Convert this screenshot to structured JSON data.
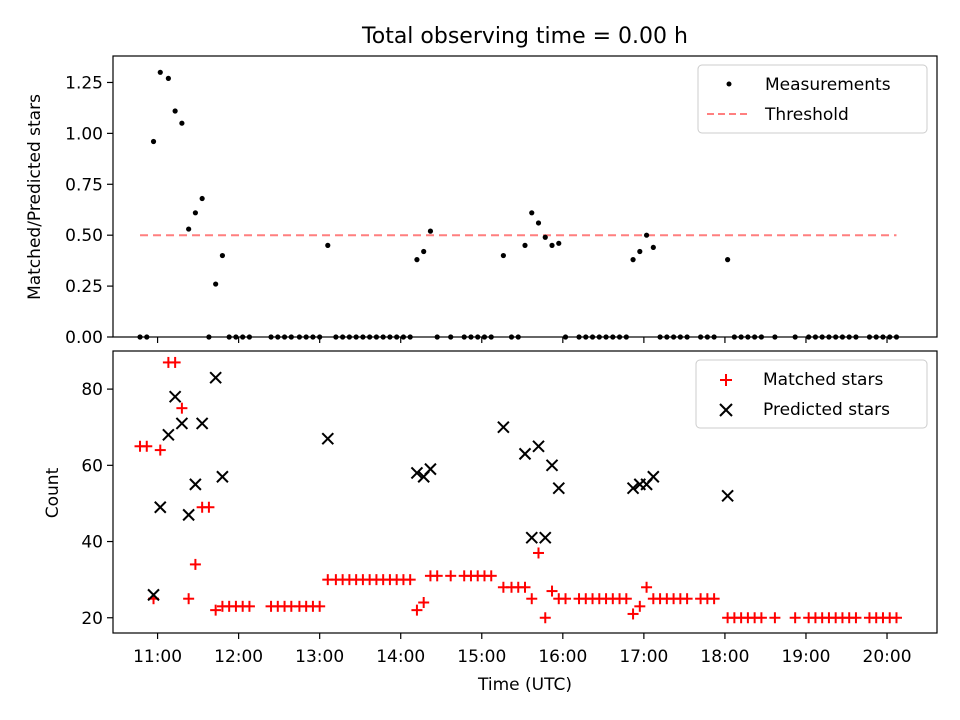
{
  "chart_data": [
    {
      "type": "scatter",
      "title": "Total observing time = 0.00 h",
      "ylabel": "Matched/Predicted stars",
      "xlim": [
        "10:27",
        "20:37"
      ],
      "ylim": [
        0,
        1.38
      ],
      "yticks": [
        0.0,
        0.25,
        0.5,
        0.75,
        1.0,
        1.25
      ],
      "ytick_labels": [
        "0.00",
        "0.25",
        "0.50",
        "0.75",
        "1.00",
        "1.25"
      ],
      "x_tick_labels_shown": false,
      "legend_position": "top-right",
      "series": [
        {
          "name": "Measurements",
          "marker": "dot",
          "color": "#000000",
          "points": [
            [
              "10:47",
              0.0
            ],
            [
              "10:52",
              0.0
            ],
            [
              "10:57",
              0.96
            ],
            [
              "11:02",
              1.3
            ],
            [
              "11:08",
              1.27
            ],
            [
              "11:13",
              1.11
            ],
            [
              "11:18",
              1.05
            ],
            [
              "11:23",
              0.53
            ],
            [
              "11:28",
              0.61
            ],
            [
              "11:33",
              0.68
            ],
            [
              "11:38",
              0.0
            ],
            [
              "11:43",
              0.26
            ],
            [
              "11:48",
              0.4
            ],
            [
              "11:53",
              0.0
            ],
            [
              "11:58",
              0.0
            ],
            [
              "12:03",
              0.0
            ],
            [
              "12:08",
              0.0
            ],
            [
              "12:24",
              0.0
            ],
            [
              "12:29",
              0.0
            ],
            [
              "12:34",
              0.0
            ],
            [
              "12:39",
              0.0
            ],
            [
              "12:45",
              0.0
            ],
            [
              "12:50",
              0.0
            ],
            [
              "12:55",
              0.0
            ],
            [
              "13:00",
              0.0
            ],
            [
              "13:06",
              0.45
            ],
            [
              "13:12",
              0.0
            ],
            [
              "13:17",
              0.0
            ],
            [
              "13:22",
              0.0
            ],
            [
              "13:27",
              0.0
            ],
            [
              "13:32",
              0.0
            ],
            [
              "13:37",
              0.0
            ],
            [
              "13:42",
              0.0
            ],
            [
              "13:47",
              0.0
            ],
            [
              "13:52",
              0.0
            ],
            [
              "13:57",
              0.0
            ],
            [
              "14:02",
              0.0
            ],
            [
              "14:07",
              0.0
            ],
            [
              "14:12",
              0.38
            ],
            [
              "14:17",
              0.42
            ],
            [
              "14:22",
              0.52
            ],
            [
              "14:27",
              0.0
            ],
            [
              "14:37",
              0.0
            ],
            [
              "14:47",
              0.0
            ],
            [
              "14:52",
              0.0
            ],
            [
              "14:57",
              0.0
            ],
            [
              "15:02",
              0.0
            ],
            [
              "15:07",
              0.0
            ],
            [
              "15:16",
              0.4
            ],
            [
              "15:22",
              0.0
            ],
            [
              "15:27",
              0.0
            ],
            [
              "15:32",
              0.45
            ],
            [
              "15:37",
              0.61
            ],
            [
              "15:42",
              0.56
            ],
            [
              "15:47",
              0.49
            ],
            [
              "15:52",
              0.45
            ],
            [
              "15:57",
              0.46
            ],
            [
              "16:02",
              0.0
            ],
            [
              "16:12",
              0.0
            ],
            [
              "16:17",
              0.0
            ],
            [
              "16:22",
              0.0
            ],
            [
              "16:27",
              0.0
            ],
            [
              "16:32",
              0.0
            ],
            [
              "16:37",
              0.0
            ],
            [
              "16:42",
              0.0
            ],
            [
              "16:47",
              0.0
            ],
            [
              "16:52",
              0.38
            ],
            [
              "16:57",
              0.42
            ],
            [
              "17:02",
              0.5
            ],
            [
              "17:07",
              0.44
            ],
            [
              "17:12",
              0.0
            ],
            [
              "17:17",
              0.0
            ],
            [
              "17:22",
              0.0
            ],
            [
              "17:27",
              0.0
            ],
            [
              "17:32",
              0.0
            ],
            [
              "17:42",
              0.0
            ],
            [
              "17:47",
              0.0
            ],
            [
              "17:52",
              0.0
            ],
            [
              "18:02",
              0.38
            ],
            [
              "18:07",
              0.0
            ],
            [
              "18:12",
              0.0
            ],
            [
              "18:17",
              0.0
            ],
            [
              "18:22",
              0.0
            ],
            [
              "18:27",
              0.0
            ],
            [
              "18:37",
              0.0
            ],
            [
              "18:52",
              0.0
            ],
            [
              "19:02",
              0.0
            ],
            [
              "19:07",
              0.0
            ],
            [
              "19:12",
              0.0
            ],
            [
              "19:17",
              0.0
            ],
            [
              "19:22",
              0.0
            ],
            [
              "19:27",
              0.0
            ],
            [
              "19:32",
              0.0
            ],
            [
              "19:37",
              0.0
            ],
            [
              "19:47",
              0.0
            ],
            [
              "19:52",
              0.0
            ],
            [
              "19:57",
              0.0
            ],
            [
              "20:02",
              0.0
            ],
            [
              "20:07",
              0.0
            ]
          ]
        },
        {
          "name": "Threshold",
          "type": "line",
          "style": "dashed",
          "color": "#ff7f7f",
          "x": [
            "10:47",
            "20:07"
          ],
          "y": [
            0.5,
            0.5
          ]
        }
      ]
    },
    {
      "type": "scatter",
      "xlabel": "Time (UTC)",
      "ylabel": "Count",
      "xlim": [
        "10:27",
        "20:37"
      ],
      "ylim": [
        16,
        90
      ],
      "yticks": [
        20,
        40,
        60,
        80
      ],
      "ytick_labels": [
        "20",
        "40",
        "60",
        "80"
      ],
      "xticks": [
        "11:00",
        "12:00",
        "13:00",
        "14:00",
        "15:00",
        "16:00",
        "17:00",
        "18:00",
        "19:00",
        "20:00"
      ],
      "legend_position": "top-right",
      "series": [
        {
          "name": "Matched stars",
          "marker": "plus",
          "color": "#ff0000",
          "points": [
            [
              "10:47",
              65
            ],
            [
              "10:52",
              65
            ],
            [
              "10:57",
              25
            ],
            [
              "11:02",
              64
            ],
            [
              "11:08",
              87
            ],
            [
              "11:13",
              87
            ],
            [
              "11:18",
              75
            ],
            [
              "11:23",
              25
            ],
            [
              "11:28",
              34
            ],
            [
              "11:33",
              49
            ],
            [
              "11:38",
              49
            ],
            [
              "11:43",
              22
            ],
            [
              "11:48",
              23
            ],
            [
              "11:53",
              23
            ],
            [
              "11:58",
              23
            ],
            [
              "12:03",
              23
            ],
            [
              "12:08",
              23
            ],
            [
              "12:24",
              23
            ],
            [
              "12:29",
              23
            ],
            [
              "12:34",
              23
            ],
            [
              "12:39",
              23
            ],
            [
              "12:45",
              23
            ],
            [
              "12:50",
              23
            ],
            [
              "12:55",
              23
            ],
            [
              "13:00",
              23
            ],
            [
              "13:06",
              30
            ],
            [
              "13:12",
              30
            ],
            [
              "13:17",
              30
            ],
            [
              "13:22",
              30
            ],
            [
              "13:27",
              30
            ],
            [
              "13:32",
              30
            ],
            [
              "13:37",
              30
            ],
            [
              "13:42",
              30
            ],
            [
              "13:47",
              30
            ],
            [
              "13:52",
              30
            ],
            [
              "13:57",
              30
            ],
            [
              "14:02",
              30
            ],
            [
              "14:07",
              30
            ],
            [
              "14:12",
              22
            ],
            [
              "14:17",
              24
            ],
            [
              "14:22",
              31
            ],
            [
              "14:27",
              31
            ],
            [
              "14:37",
              31
            ],
            [
              "14:47",
              31
            ],
            [
              "14:52",
              31
            ],
            [
              "14:57",
              31
            ],
            [
              "15:02",
              31
            ],
            [
              "15:07",
              31
            ],
            [
              "15:16",
              28
            ],
            [
              "15:22",
              28
            ],
            [
              "15:27",
              28
            ],
            [
              "15:32",
              28
            ],
            [
              "15:37",
              25
            ],
            [
              "15:42",
              37
            ],
            [
              "15:47",
              20
            ],
            [
              "15:52",
              27
            ],
            [
              "15:57",
              25
            ],
            [
              "16:02",
              25
            ],
            [
              "16:12",
              25
            ],
            [
              "16:17",
              25
            ],
            [
              "16:22",
              25
            ],
            [
              "16:27",
              25
            ],
            [
              "16:32",
              25
            ],
            [
              "16:37",
              25
            ],
            [
              "16:42",
              25
            ],
            [
              "16:47",
              25
            ],
            [
              "16:52",
              21
            ],
            [
              "16:57",
              23
            ],
            [
              "17:02",
              28
            ],
            [
              "17:07",
              25
            ],
            [
              "17:12",
              25
            ],
            [
              "17:17",
              25
            ],
            [
              "17:22",
              25
            ],
            [
              "17:27",
              25
            ],
            [
              "17:32",
              25
            ],
            [
              "17:42",
              25
            ],
            [
              "17:47",
              25
            ],
            [
              "17:52",
              25
            ],
            [
              "18:02",
              20
            ],
            [
              "18:07",
              20
            ],
            [
              "18:12",
              20
            ],
            [
              "18:17",
              20
            ],
            [
              "18:22",
              20
            ],
            [
              "18:27",
              20
            ],
            [
              "18:37",
              20
            ],
            [
              "18:52",
              20
            ],
            [
              "19:02",
              20
            ],
            [
              "19:07",
              20
            ],
            [
              "19:12",
              20
            ],
            [
              "19:17",
              20
            ],
            [
              "19:22",
              20
            ],
            [
              "19:27",
              20
            ],
            [
              "19:32",
              20
            ],
            [
              "19:37",
              20
            ],
            [
              "19:47",
              20
            ],
            [
              "19:52",
              20
            ],
            [
              "19:57",
              20
            ],
            [
              "20:02",
              20
            ],
            [
              "20:07",
              20
            ]
          ]
        },
        {
          "name": "Predicted stars",
          "marker": "x",
          "color": "#000000",
          "points": [
            [
              "10:57",
              26
            ],
            [
              "11:02",
              49
            ],
            [
              "11:08",
              68
            ],
            [
              "11:13",
              78
            ],
            [
              "11:18",
              71
            ],
            [
              "11:23",
              47
            ],
            [
              "11:28",
              55
            ],
            [
              "11:33",
              71
            ],
            [
              "11:43",
              83
            ],
            [
              "11:48",
              57
            ],
            [
              "13:06",
              67
            ],
            [
              "14:12",
              58
            ],
            [
              "14:17",
              57
            ],
            [
              "14:22",
              59
            ],
            [
              "15:16",
              70
            ],
            [
              "15:32",
              63
            ],
            [
              "15:37",
              41
            ],
            [
              "15:42",
              65
            ],
            [
              "15:47",
              41
            ],
            [
              "15:52",
              60
            ],
            [
              "15:57",
              54
            ],
            [
              "16:52",
              54
            ],
            [
              "16:57",
              55
            ],
            [
              "17:02",
              55
            ],
            [
              "17:07",
              57
            ],
            [
              "18:02",
              52
            ]
          ]
        }
      ]
    }
  ]
}
